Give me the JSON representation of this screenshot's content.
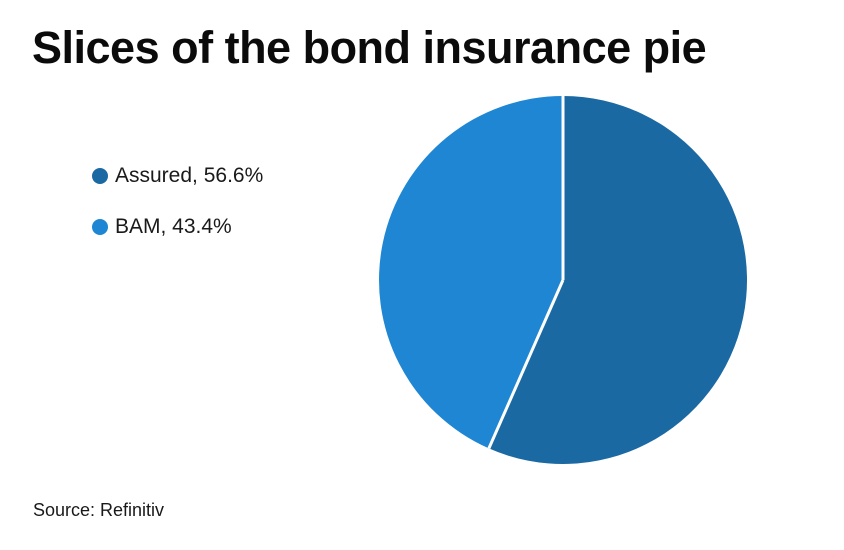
{
  "title": "Slices of the bond insurance pie",
  "source": "Source: Refinitiv",
  "colors": {
    "assured": "#1b69a3",
    "bam": "#1e86d2",
    "divider": "#ffffff",
    "text": "#0b0b0b"
  },
  "legend": {
    "items": [
      {
        "label": "Assured, 56.6%",
        "color": "#1b69a3"
      },
      {
        "label": "BAM, 43.4%",
        "color": "#1e86d2"
      }
    ]
  },
  "chart_data": {
    "type": "pie",
    "title": "Slices of the bond insurance pie",
    "labels": [
      "Assured",
      "BAM"
    ],
    "values": [
      56.6,
      43.4
    ],
    "unit": "%",
    "colors": [
      "#1b69a3",
      "#1e86d2"
    ],
    "start_angle_deg": 0,
    "direction": "clockwise",
    "slice_gap_color": "#ffffff",
    "legend_position": "left",
    "source": "Source: Refinitiv"
  }
}
